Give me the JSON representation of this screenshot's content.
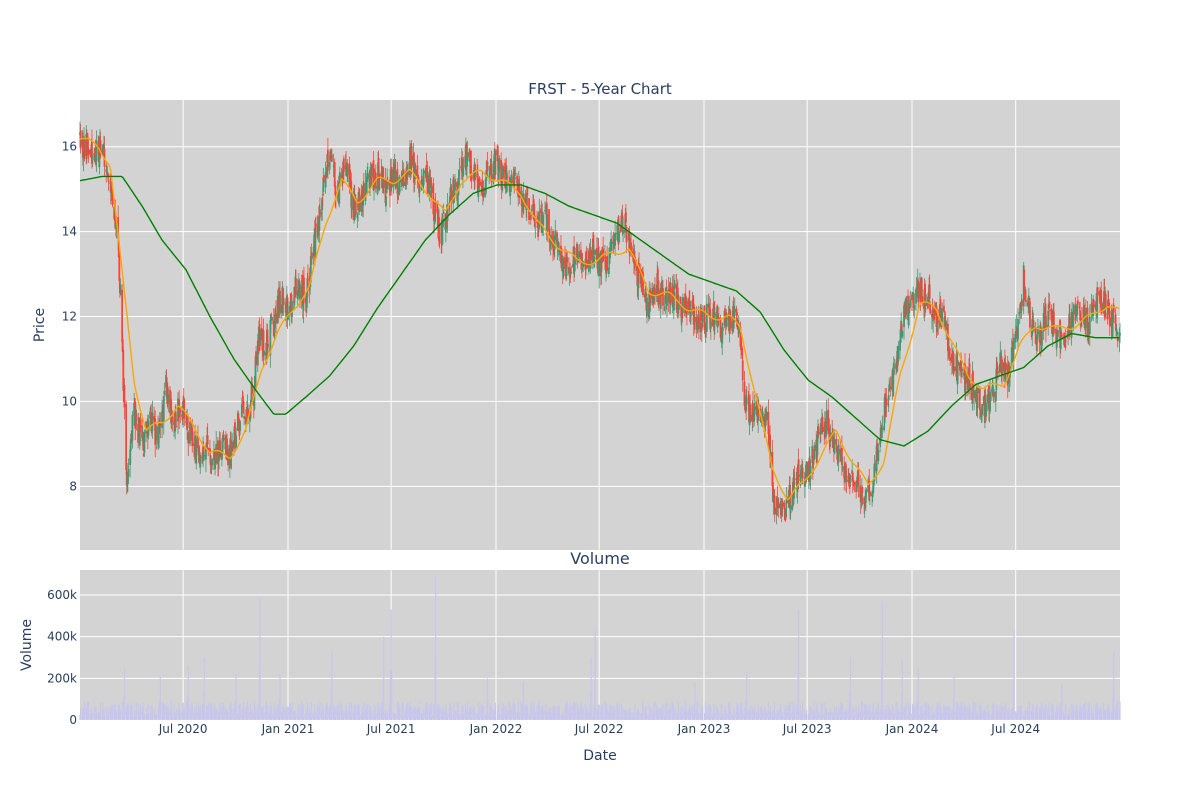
{
  "chart_data": [
    {
      "type": "candlestick",
      "title": "FRST - 5-Year Chart",
      "xlabel": "",
      "ylabel": "Price",
      "xlim": [
        "2020-01-02",
        "2024-12-31"
      ],
      "ylim": [
        6.5,
        17.1
      ],
      "y_ticks": [
        8,
        10,
        12,
        14,
        16
      ],
      "grid": true,
      "plot_bgcolor": "#d3d3d3",
      "up_color": "#3d9970",
      "down_color": "#ff4136",
      "price_path": [
        [
          "2020-01-02",
          16.2
        ],
        [
          "2020-01-20",
          15.8
        ],
        [
          "2020-02-10",
          16.0
        ],
        [
          "2020-02-24",
          15.2
        ],
        [
          "2020-03-09",
          13.8
        ],
        [
          "2020-03-16",
          11.5
        ],
        [
          "2020-03-23",
          8.2
        ],
        [
          "2020-04-06",
          9.8
        ],
        [
          "2020-04-20",
          8.9
        ],
        [
          "2020-05-04",
          9.6
        ],
        [
          "2020-05-18",
          9.0
        ],
        [
          "2020-06-01",
          10.3
        ],
        [
          "2020-06-15",
          9.6
        ],
        [
          "2020-06-29",
          9.9
        ],
        [
          "2020-07-13",
          9.2
        ],
        [
          "2020-07-27",
          8.7
        ],
        [
          "2020-08-10",
          9.0
        ],
        [
          "2020-08-24",
          8.6
        ],
        [
          "2020-09-07",
          8.9
        ],
        [
          "2020-09-21",
          8.7
        ],
        [
          "2020-10-05",
          9.5
        ],
        [
          "2020-10-19",
          9.9
        ],
        [
          "2020-11-02",
          10.2
        ],
        [
          "2020-11-09",
          11.5
        ],
        [
          "2020-11-23",
          11.3
        ],
        [
          "2020-12-07",
          11.8
        ],
        [
          "2020-12-21",
          12.5
        ],
        [
          "2021-01-04",
          12.1
        ],
        [
          "2021-01-18",
          12.8
        ],
        [
          "2021-02-01",
          12.4
        ],
        [
          "2021-02-15",
          13.5
        ],
        [
          "2021-03-01",
          14.8
        ],
        [
          "2021-03-15",
          15.8
        ],
        [
          "2021-03-29",
          14.9
        ],
        [
          "2021-04-12",
          15.5
        ],
        [
          "2021-04-26",
          14.6
        ],
        [
          "2021-05-10",
          14.8
        ],
        [
          "2021-05-24",
          15.2
        ],
        [
          "2021-06-07",
          15.4
        ],
        [
          "2021-06-21",
          15.0
        ],
        [
          "2021-07-05",
          15.3
        ],
        [
          "2021-07-19",
          15.0
        ],
        [
          "2021-08-02",
          15.8
        ],
        [
          "2021-08-16",
          15.2
        ],
        [
          "2021-08-30",
          15.4
        ],
        [
          "2021-09-13",
          14.6
        ],
        [
          "2021-09-27",
          13.9
        ],
        [
          "2021-10-11",
          14.8
        ],
        [
          "2021-10-25",
          15.0
        ],
        [
          "2021-11-08",
          15.8
        ],
        [
          "2021-11-22",
          15.3
        ],
        [
          "2021-12-06",
          14.9
        ],
        [
          "2021-12-20",
          15.4
        ],
        [
          "2022-01-03",
          15.6
        ],
        [
          "2022-01-17",
          15.1
        ],
        [
          "2022-01-31",
          15.3
        ],
        [
          "2022-02-14",
          14.8
        ],
        [
          "2022-02-28",
          14.5
        ],
        [
          "2022-03-14",
          14.1
        ],
        [
          "2022-03-28",
          14.3
        ],
        [
          "2022-04-11",
          13.8
        ],
        [
          "2022-04-25",
          13.4
        ],
        [
          "2022-05-09",
          13.1
        ],
        [
          "2022-05-23",
          13.5
        ],
        [
          "2022-06-06",
          13.3
        ],
        [
          "2022-06-20",
          13.6
        ],
        [
          "2022-07-04",
          13.2
        ],
        [
          "2022-07-18",
          13.4
        ],
        [
          "2022-08-01",
          13.9
        ],
        [
          "2022-08-15",
          14.2
        ],
        [
          "2022-08-29",
          13.3
        ],
        [
          "2022-09-12",
          12.8
        ],
        [
          "2022-09-26",
          12.3
        ],
        [
          "2022-10-10",
          12.7
        ],
        [
          "2022-10-24",
          12.4
        ],
        [
          "2022-11-07",
          12.6
        ],
        [
          "2022-11-21",
          12.3
        ],
        [
          "2022-12-05",
          12.2
        ],
        [
          "2022-12-19",
          12.0
        ],
        [
          "2023-01-02",
          11.9
        ],
        [
          "2023-01-16",
          12.1
        ],
        [
          "2023-01-30",
          11.8
        ],
        [
          "2023-02-13",
          12.0
        ],
        [
          "2023-02-27",
          11.9
        ],
        [
          "2023-03-06",
          11.6
        ],
        [
          "2023-03-13",
          10.0
        ],
        [
          "2023-03-27",
          9.6
        ],
        [
          "2023-04-10",
          9.8
        ],
        [
          "2023-04-24",
          9.4
        ],
        [
          "2023-05-01",
          8.0
        ],
        [
          "2023-05-08",
          7.3
        ],
        [
          "2023-05-22",
          7.5
        ],
        [
          "2023-06-05",
          7.8
        ],
        [
          "2023-06-19",
          8.4
        ],
        [
          "2023-07-03",
          8.3
        ],
        [
          "2023-07-17",
          8.9
        ],
        [
          "2023-07-31",
          9.6
        ],
        [
          "2023-08-14",
          9.1
        ],
        [
          "2023-08-28",
          8.7
        ],
        [
          "2023-09-11",
          8.3
        ],
        [
          "2023-09-25",
          8.0
        ],
        [
          "2023-10-09",
          7.8
        ],
        [
          "2023-10-23",
          7.9
        ],
        [
          "2023-11-06",
          9.4
        ],
        [
          "2023-11-20",
          10.1
        ],
        [
          "2023-12-04",
          10.8
        ],
        [
          "2023-12-18",
          12.0
        ],
        [
          "2024-01-01",
          12.5
        ],
        [
          "2024-01-15",
          12.6
        ],
        [
          "2024-01-29",
          12.4
        ],
        [
          "2024-02-12",
          12.1
        ],
        [
          "2024-02-26",
          11.9
        ],
        [
          "2024-03-11",
          11.0
        ],
        [
          "2024-03-25",
          10.6
        ],
        [
          "2024-04-08",
          10.5
        ],
        [
          "2024-04-22",
          10.2
        ],
        [
          "2024-05-06",
          9.8
        ],
        [
          "2024-05-20",
          10.0
        ],
        [
          "2024-06-03",
          10.9
        ],
        [
          "2024-06-17",
          10.6
        ],
        [
          "2024-07-01",
          11.5
        ],
        [
          "2024-07-15",
          12.9
        ],
        [
          "2024-07-29",
          11.8
        ],
        [
          "2024-08-12",
          11.6
        ],
        [
          "2024-08-26",
          12.1
        ],
        [
          "2024-09-09",
          11.7
        ],
        [
          "2024-09-23",
          11.5
        ],
        [
          "2024-10-07",
          12.0
        ],
        [
          "2024-10-21",
          12.1
        ],
        [
          "2024-11-04",
          11.8
        ],
        [
          "2024-11-18",
          12.4
        ],
        [
          "2024-12-02",
          12.3
        ],
        [
          "2024-12-16",
          11.9
        ],
        [
          "2024-12-31",
          11.7
        ]
      ],
      "overlay_lines": [
        {
          "color": "#ffa500",
          "points": [
            [
              "2020-01-02",
              16.2
            ],
            [
              "2020-02-03",
              16.0
            ],
            [
              "2020-02-24",
              15.6
            ],
            [
              "2020-03-16",
              13.0
            ],
            [
              "2020-04-06",
              10.5
            ],
            [
              "2020-04-27",
              9.3
            ],
            [
              "2020-05-25",
              9.5
            ],
            [
              "2020-06-22",
              9.9
            ],
            [
              "2020-07-20",
              9.4
            ],
            [
              "2020-08-17",
              8.8
            ],
            [
              "2020-09-21",
              8.7
            ],
            [
              "2020-10-19",
              9.3
            ],
            [
              "2020-11-16",
              10.8
            ],
            [
              "2020-12-14",
              11.6
            ],
            [
              "2021-01-11",
              12.2
            ],
            [
              "2021-02-08",
              12.7
            ],
            [
              "2021-03-08",
              14.2
            ],
            [
              "2021-04-05",
              15.2
            ],
            [
              "2021-05-03",
              14.7
            ],
            [
              "2021-06-07",
              15.2
            ],
            [
              "2021-07-05",
              15.2
            ],
            [
              "2021-08-02",
              15.4
            ],
            [
              "2021-09-06",
              14.9
            ],
            [
              "2021-10-04",
              14.4
            ],
            [
              "2021-11-01",
              15.2
            ],
            [
              "2021-12-06",
              15.4
            ],
            [
              "2022-01-10",
              15.2
            ],
            [
              "2022-02-14",
              14.9
            ],
            [
              "2022-03-14",
              14.2
            ],
            [
              "2022-04-18",
              13.7
            ],
            [
              "2022-05-23",
              13.3
            ],
            [
              "2022-06-27",
              13.3
            ],
            [
              "2022-07-25",
              13.5
            ],
            [
              "2022-08-22",
              13.6
            ],
            [
              "2022-09-26",
              12.6
            ],
            [
              "2022-10-31",
              12.5
            ],
            [
              "2022-12-05",
              12.2
            ],
            [
              "2023-01-09",
              12.0
            ],
            [
              "2023-02-13",
              12.0
            ],
            [
              "2023-03-06",
              11.7
            ],
            [
              "2023-04-03",
              10.1
            ],
            [
              "2023-05-01",
              8.4
            ],
            [
              "2023-05-29",
              7.7
            ],
            [
              "2023-06-26",
              8.1
            ],
            [
              "2023-07-24",
              8.7
            ],
            [
              "2023-08-21",
              9.3
            ],
            [
              "2023-09-18",
              8.6
            ],
            [
              "2023-10-16",
              8.0
            ],
            [
              "2023-11-13",
              8.6
            ],
            [
              "2023-12-11",
              10.6
            ],
            [
              "2024-01-15",
              12.3
            ],
            [
              "2024-02-12",
              12.2
            ],
            [
              "2024-03-11",
              11.4
            ],
            [
              "2024-04-08",
              10.6
            ],
            [
              "2024-05-06",
              10.3
            ],
            [
              "2024-06-10",
              10.4
            ],
            [
              "2024-07-08",
              11.3
            ],
            [
              "2024-08-05",
              11.8
            ],
            [
              "2024-09-09",
              11.7
            ],
            [
              "2024-10-14",
              11.8
            ],
            [
              "2024-11-11",
              12.0
            ],
            [
              "2024-12-09",
              12.3
            ],
            [
              "2024-12-31",
              12.1
            ]
          ]
        },
        {
          "color": "#008000",
          "points": [
            [
              "2020-01-02",
              15.2
            ],
            [
              "2020-02-10",
              15.3
            ],
            [
              "2020-03-16",
              15.3
            ],
            [
              "2020-04-20",
              14.6
            ],
            [
              "2020-05-25",
              13.8
            ],
            [
              "2020-07-06",
              13.1
            ],
            [
              "2020-08-17",
              12.0
            ],
            [
              "2020-09-28",
              11.0
            ],
            [
              "2020-11-09",
              10.2
            ],
            [
              "2020-12-07",
              9.7
            ],
            [
              "2020-12-28",
              9.7
            ],
            [
              "2021-02-01",
              10.1
            ],
            [
              "2021-03-15",
              10.6
            ],
            [
              "2021-04-26",
              11.3
            ],
            [
              "2021-06-07",
              12.2
            ],
            [
              "2021-07-19",
              13.0
            ],
            [
              "2021-08-30",
              13.8
            ],
            [
              "2021-10-11",
              14.4
            ],
            [
              "2021-11-22",
              14.9
            ],
            [
              "2022-01-03",
              15.1
            ],
            [
              "2022-02-14",
              15.1
            ],
            [
              "2022-03-28",
              14.9
            ],
            [
              "2022-05-09",
              14.6
            ],
            [
              "2022-06-20",
              14.4
            ],
            [
              "2022-08-01",
              14.2
            ],
            [
              "2022-09-12",
              13.8
            ],
            [
              "2022-10-24",
              13.4
            ],
            [
              "2022-12-05",
              13.0
            ],
            [
              "2023-01-16",
              12.8
            ],
            [
              "2023-02-27",
              12.6
            ],
            [
              "2023-04-10",
              12.1
            ],
            [
              "2023-05-22",
              11.2
            ],
            [
              "2023-07-03",
              10.5
            ],
            [
              "2023-08-14",
              10.1
            ],
            [
              "2023-09-25",
              9.6
            ],
            [
              "2023-11-06",
              9.1
            ],
            [
              "2023-12-18",
              8.95
            ],
            [
              "2024-01-29",
              9.3
            ],
            [
              "2024-03-11",
              9.9
            ],
            [
              "2024-04-22",
              10.4
            ],
            [
              "2024-06-03",
              10.6
            ],
            [
              "2024-07-15",
              10.8
            ],
            [
              "2024-08-26",
              11.3
            ],
            [
              "2024-10-07",
              11.6
            ],
            [
              "2024-11-18",
              11.5
            ],
            [
              "2024-12-31",
              11.5
            ]
          ]
        }
      ]
    },
    {
      "type": "bar",
      "title": "Volume",
      "xlabel": "Date",
      "ylabel": "Volume",
      "xlim": [
        "2020-01-02",
        "2024-12-31"
      ],
      "ylim": [
        0,
        720000
      ],
      "y_ticks": [
        0,
        200000,
        400000,
        600000
      ],
      "y_tick_labels": [
        "0",
        "200k",
        "400k",
        "600k"
      ],
      "x_ticks": [
        "2020-07-01",
        "2021-01-01",
        "2021-07-01",
        "2022-01-01",
        "2022-07-01",
        "2023-01-01",
        "2023-07-01",
        "2024-01-01",
        "2024-07-01"
      ],
      "x_tick_labels": [
        "Jul 2020",
        "Jan 2021",
        "Jul 2021",
        "Jan 2022",
        "Jul 2022",
        "Jan 2023",
        "Jul 2023",
        "Jan 2024",
        "Jul 2024"
      ],
      "grid": true,
      "plot_bgcolor": "#d3d3d3",
      "bar_color": "#c8c6ec",
      "base_level": 50000,
      "spikes": [
        [
          "2020-03-20",
          250000
        ],
        [
          "2020-05-22",
          210000
        ],
        [
          "2020-07-10",
          260000
        ],
        [
          "2020-08-07",
          300000
        ],
        [
          "2020-10-02",
          220000
        ],
        [
          "2020-11-13",
          590000
        ],
        [
          "2020-12-18",
          220000
        ],
        [
          "2021-03-19",
          330000
        ],
        [
          "2021-06-18",
          400000
        ],
        [
          "2021-07-01",
          530000
        ],
        [
          "2021-09-17",
          690000
        ],
        [
          "2021-12-17",
          200000
        ],
        [
          "2022-02-18",
          180000
        ],
        [
          "2022-06-17",
          300000
        ],
        [
          "2022-06-24",
          430000
        ],
        [
          "2022-12-16",
          180000
        ],
        [
          "2023-03-17",
          220000
        ],
        [
          "2023-06-16",
          530000
        ],
        [
          "2023-09-15",
          300000
        ],
        [
          "2023-11-10",
          570000
        ],
        [
          "2023-12-15",
          290000
        ],
        [
          "2024-01-12",
          250000
        ],
        [
          "2024-03-15",
          210000
        ],
        [
          "2024-06-28",
          430000
        ],
        [
          "2024-09-20",
          170000
        ],
        [
          "2024-12-20",
          330000
        ]
      ]
    }
  ]
}
